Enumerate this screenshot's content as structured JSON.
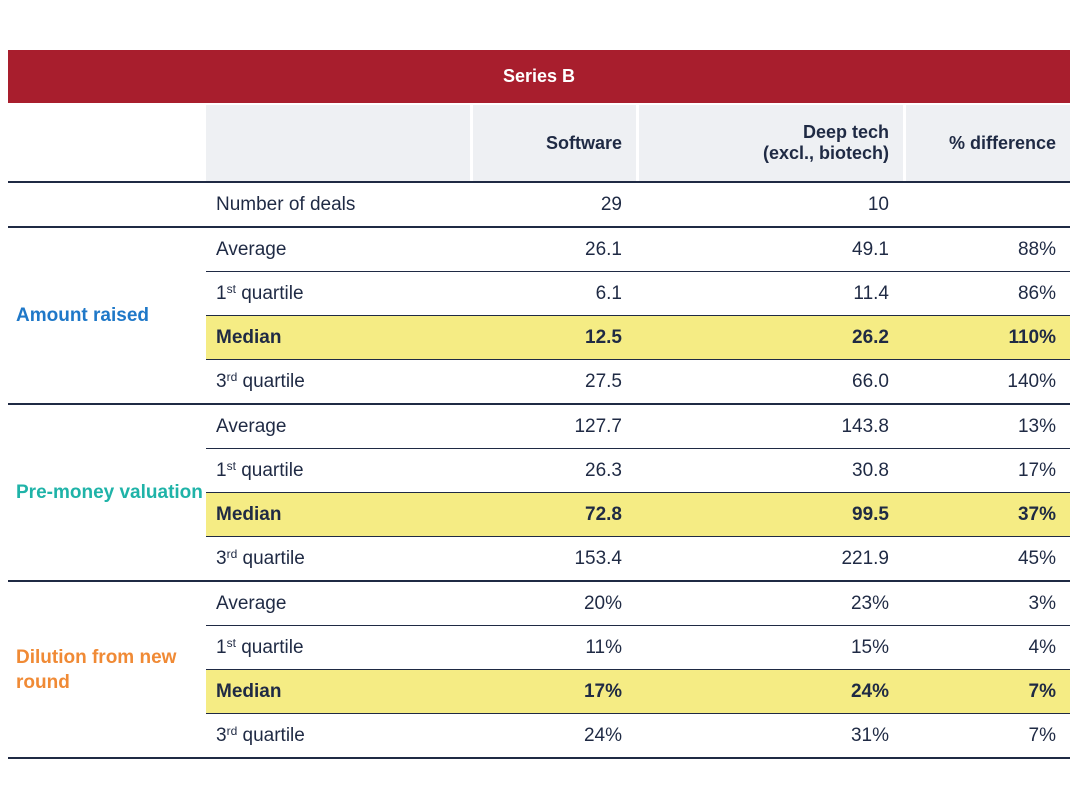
{
  "chart_data": {
    "type": "table",
    "title": "Series B",
    "columns": [
      "",
      "",
      "Software",
      "Deep tech\n(excl., biotech)",
      "% difference"
    ],
    "groups": [
      {
        "label": "",
        "rows": [
          {
            "metric": "Number of deals",
            "software": "29",
            "deep_tech": "10",
            "diff": ""
          }
        ]
      },
      {
        "label": "Amount raised",
        "color": "#1f78c8",
        "rows": [
          {
            "metric": "Average",
            "software": "26.1",
            "deep_tech": "49.1",
            "diff": "88%"
          },
          {
            "metric_num": "1",
            "metric_sup": "st",
            "metric_rest": " quartile",
            "software": "6.1",
            "deep_tech": "11.4",
            "diff": "86%"
          },
          {
            "metric": "Median",
            "software": "12.5",
            "deep_tech": "26.2",
            "diff": "110%",
            "highlight": true
          },
          {
            "metric_num": "3",
            "metric_sup": "rd",
            "metric_rest": " quartile",
            "software": "27.5",
            "deep_tech": "66.0",
            "diff": "140%"
          }
        ]
      },
      {
        "label": "Pre-money valuation",
        "color": "#1fb3a8",
        "rows": [
          {
            "metric": "Average",
            "software": "127.7",
            "deep_tech": "143.8",
            "diff": "13%"
          },
          {
            "metric_num": "1",
            "metric_sup": "st",
            "metric_rest": " quartile",
            "software": "26.3",
            "deep_tech": "30.8",
            "diff": "17%"
          },
          {
            "metric": "Median",
            "software": "72.8",
            "deep_tech": "99.5",
            "diff": "37%",
            "highlight": true
          },
          {
            "metric_num": "3",
            "metric_sup": "rd",
            "metric_rest": " quartile",
            "software": "153.4",
            "deep_tech": "221.9",
            "diff": "45%"
          }
        ]
      },
      {
        "label": "Dilution from new round",
        "color": "#f08a35",
        "rows": [
          {
            "metric": "Average",
            "software": "20%",
            "deep_tech": "23%",
            "diff": "3%"
          },
          {
            "metric_num": "1",
            "metric_sup": "st",
            "metric_rest": " quartile",
            "software": "11%",
            "deep_tech": "15%",
            "diff": "4%"
          },
          {
            "metric": "Median",
            "software": "17%",
            "deep_tech": "24%",
            "diff": "7%",
            "highlight": true
          },
          {
            "metric_num": "3",
            "metric_sup": "rd",
            "metric_rest": " quartile",
            "software": "24%",
            "deep_tech": "31%",
            "diff": "7%"
          }
        ]
      }
    ],
    "colors": {
      "banner": "#a81e2d",
      "header_bg": "#eef0f3",
      "highlight": "#f5ec84",
      "text": "#1f2a44"
    }
  }
}
